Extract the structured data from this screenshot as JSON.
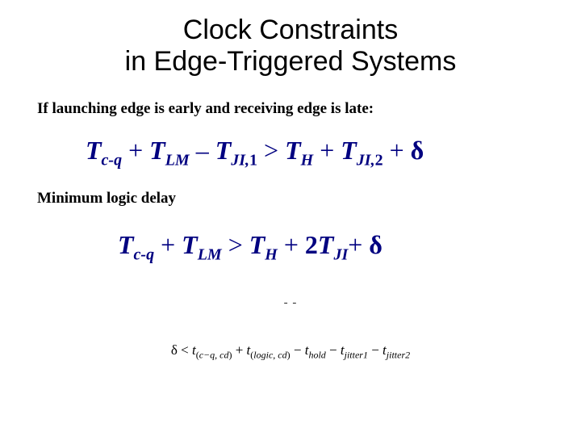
{
  "title_line1": "Clock Constraints",
  "title_line2": "in Edge-Triggered Systems",
  "text1": "If launching edge is early and receiving edge is late:",
  "eq1": {
    "t1": "T",
    "s1": "c-q",
    "plus1": " + ",
    "t2": "T",
    "s2": "LM",
    "minus1": " – ",
    "t3": "T",
    "s3": "JI,",
    "s3b": "1",
    "gt": " > ",
    "t4": "T",
    "s4": "H",
    "plus2": " + ",
    "t5": "T",
    "s5": "JI,",
    "s5b": "2",
    "plus3": " + ",
    "delta": "δ"
  },
  "text2": "Minimum logic delay",
  "eq2": {
    "t1": "T",
    "s1": "c-q",
    "plus1": " + ",
    "t2": "T",
    "s2": "LM",
    "gt": " > ",
    "t3": "T",
    "s3": "H",
    "plus2": " + ",
    "two": "2",
    "t4": "T",
    "s4": "JI",
    "plus3": "+ ",
    "delta": "δ"
  },
  "dashes": "- -",
  "final": {
    "delta": "δ",
    "lt": " < ",
    "t1": "t",
    "p1o": "(",
    "p1": "c−q, cd",
    "p1c": ")",
    "plus1": " + ",
    "t2": "t",
    "p2o": "(",
    "p2": "logic, cd",
    "p2c": ")",
    "minus1": " − ",
    "t3": "t",
    "s3": "hold",
    "minus2": " − ",
    "t4": "t",
    "s4": "jitter1",
    "minus3": " − ",
    "t5": "t",
    "s5": "jitter2"
  },
  "colors": {
    "eq_color": "#000080",
    "text_color": "#000000",
    "bg": "#ffffff"
  }
}
